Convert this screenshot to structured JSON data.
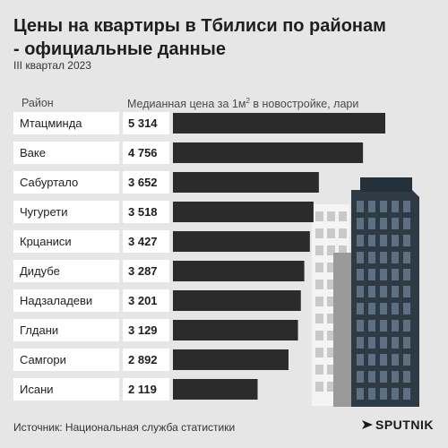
{
  "header": {
    "title": "Цены на квартиры в Тбилиси по районам - официальные данные",
    "subtitle": "III квартал 2023"
  },
  "columns": {
    "district": "Район",
    "price_prefix": "Медианная цена за 1м",
    "price_sup": "2",
    "price_suffix": " в новостройке, лари"
  },
  "footer": {
    "source": "Источник: Национальная служба статистики",
    "logo": "SPUTNIK"
  },
  "colors": {
    "bar": "#2b2b2b",
    "label_bg": "#ffffff",
    "background": "#e6e6e6"
  },
  "chart_data": {
    "type": "bar",
    "orientation": "horizontal",
    "categories": [
      "Мтацминда",
      "Ваке",
      "Сабуртало",
      "Чугурети",
      "Крцаниси",
      "Дидубе",
      "Надзаладеви",
      "Глдани",
      "Самгори",
      "Исани"
    ],
    "values": [
      5314,
      4756,
      3652,
      3518,
      3427,
      3287,
      3201,
      3129,
      2892,
      2119
    ],
    "value_labels": [
      "5 314",
      "4 756",
      "3 652",
      "3 518",
      "3 427",
      "3 287",
      "3 201",
      "3 129",
      "2 892",
      "2 119"
    ],
    "xlim": [
      0,
      5314
    ],
    "grid": false,
    "legend": "none"
  }
}
